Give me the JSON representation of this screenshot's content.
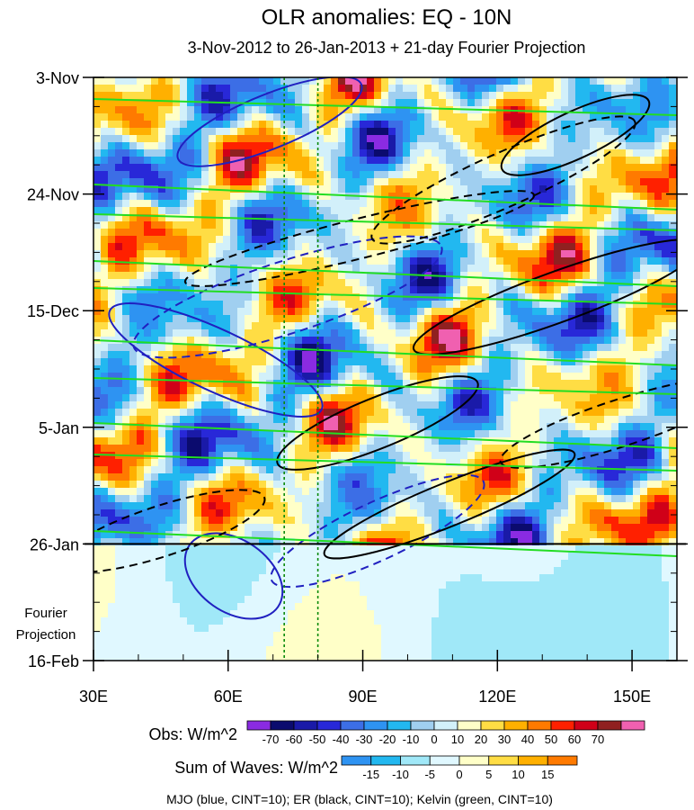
{
  "chart_data": {
    "type": "heatmap",
    "title": "OLR anomalies: EQ - 10N",
    "subtitle": "3-Nov-2012 to 26-Jan-2013 + 21-day Fourier Projection",
    "x_axis": {
      "range": [
        30,
        160
      ],
      "ticks": [
        {
          "value": 30,
          "label": "30E"
        },
        {
          "value": 60,
          "label": "60E"
        },
        {
          "value": 90,
          "label": "90E"
        },
        {
          "value": 120,
          "label": "120E"
        },
        {
          "value": 150,
          "label": "150E"
        }
      ]
    },
    "y_axis": {
      "range": [
        "3-Nov-2012",
        "16-Feb-2013"
      ],
      "ticks": [
        {
          "date": "3-Nov-2012",
          "label": "3-Nov"
        },
        {
          "date": "24-Nov-2012",
          "label": "24-Nov"
        },
        {
          "date": "15-Dec-2012",
          "label": "15-Dec"
        },
        {
          "date": "5-Jan-2013",
          "label": "5-Jan"
        },
        {
          "date": "26-Jan-2013",
          "label": "26-Jan"
        },
        {
          "date": "16-Feb-2013",
          "label": "16-Feb"
        }
      ]
    },
    "observation_end": "26-Jan-2013",
    "projection_label_line1": "Fourier",
    "projection_label_line2": "Projection",
    "reference_longitudes": [
      72.5,
      80
    ],
    "obs_colorbar": {
      "label": "Obs: W/m^2",
      "levels": [
        "-70",
        "-60",
        "-50",
        "-40",
        "-30",
        "-20",
        "-10",
        "0",
        "10",
        "20",
        "30",
        "40",
        "50",
        "60",
        "70"
      ],
      "colors": [
        "#8a2be2",
        "#0b0b6e",
        "#1a1aa8",
        "#2828d8",
        "#3c6ee6",
        "#2e93f2",
        "#22b8f0",
        "#a0cff0",
        "#d2f0fa",
        "#ffffc8",
        "#ffdd44",
        "#ffb000",
        "#ff7a00",
        "#ff2000",
        "#d00018",
        "#902020",
        "#f060b0"
      ]
    },
    "waves_colorbar": {
      "label": "Sum of Waves: W/m^2",
      "levels": [
        "-15",
        "-10",
        "-5",
        "0",
        "5",
        "10",
        "15"
      ],
      "colors": [
        "#2e93f2",
        "#22b8f0",
        "#a0e8f8",
        "#e0f8ff",
        "#ffffc8",
        "#ffdd44",
        "#ffb000",
        "#ff7a00"
      ]
    },
    "footer": "MJO (blue, CINT=10); ER (black, CINT=10); Kelvin (green, CINT=10)",
    "line_colors": {
      "mjo": "#2020c0",
      "er": "#000000",
      "kelvin": "#22dd22"
    }
  }
}
